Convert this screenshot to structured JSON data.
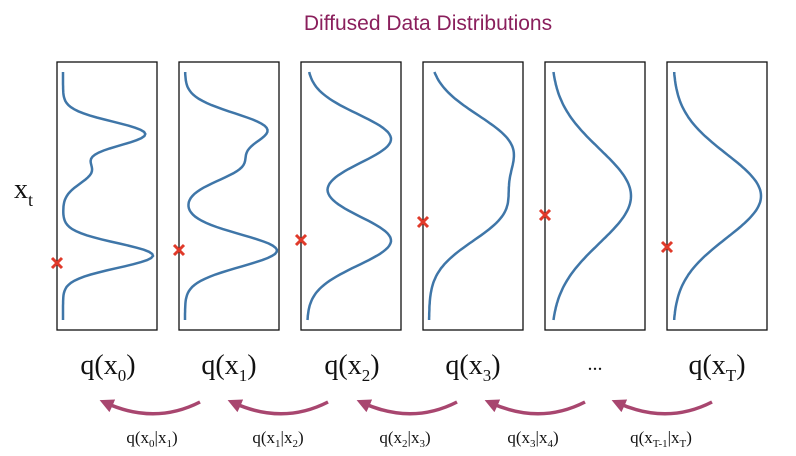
{
  "title": "Diffused Data Distributions",
  "axis_label": {
    "base": "x",
    "sub": "t"
  },
  "marginals": [
    {
      "pre": "q(x",
      "sub": "0",
      "post": ")"
    },
    {
      "pre": "q(x",
      "sub": "1",
      "post": ")"
    },
    {
      "pre": "q(x",
      "sub": "2",
      "post": ")"
    },
    {
      "pre": "q(x",
      "sub": "3",
      "post": ")"
    },
    {
      "text": "..."
    },
    {
      "pre": "q(x",
      "sub": "T",
      "post": ")"
    }
  ],
  "conditionals": [
    {
      "pre": "q(x",
      "sub1": "0",
      "mid": "|x",
      "sub2": "1",
      "post": ")"
    },
    {
      "pre": "q(x",
      "sub1": "1",
      "mid": "|x",
      "sub2": "2",
      "post": ")"
    },
    {
      "pre": "q(x",
      "sub1": "2",
      "mid": "|x",
      "sub2": "3",
      "post": ")"
    },
    {
      "pre": "q(x",
      "sub1": "3",
      "mid": "|x",
      "sub2": "4",
      "post": ")"
    },
    {
      "pre": "q(x",
      "sub1": "T-1",
      "mid": "|x",
      "sub2": "T",
      "post": ")"
    }
  ]
}
